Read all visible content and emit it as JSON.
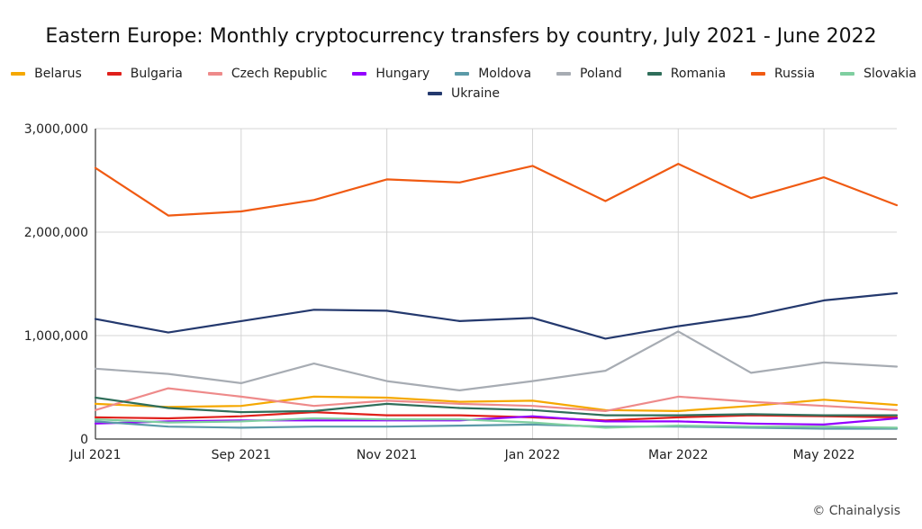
{
  "chart_data": {
    "type": "line",
    "title": "Eastern Europe: Monthly cryptocurrency transfers by country, July 2021 - June 2022",
    "xlabel": "",
    "ylabel": "",
    "x": [
      "Jul 2021",
      "Aug 2021",
      "Sep 2021",
      "Oct 2021",
      "Nov 2021",
      "Dec 2021",
      "Jan 2022",
      "Feb 2022",
      "Mar 2022",
      "Apr 2022",
      "May 2022",
      "Jun 2022"
    ],
    "xtick_labels": [
      "Jul 2021",
      "Sep 2021",
      "Nov 2021",
      "Jan 2022",
      "Mar 2022",
      "May 2022"
    ],
    "ytick_labels": [
      "0",
      "1,000,000",
      "2,000,000",
      "3,000,000"
    ],
    "ylim": [
      0,
      3000000
    ],
    "grid": true,
    "legend_position": "top",
    "series": [
      {
        "name": "Belarus",
        "color": "#f5a800",
        "values": [
          340000,
          310000,
          320000,
          410000,
          400000,
          360000,
          370000,
          280000,
          270000,
          320000,
          380000,
          330000
        ]
      },
      {
        "name": "Bulgaria",
        "color": "#e0201b",
        "values": [
          210000,
          200000,
          220000,
          260000,
          230000,
          230000,
          210000,
          180000,
          210000,
          230000,
          220000,
          210000
        ]
      },
      {
        "name": "Czech Republic",
        "color": "#ee8a8a",
        "values": [
          280000,
          490000,
          410000,
          320000,
          370000,
          340000,
          320000,
          270000,
          410000,
          360000,
          320000,
          280000
        ]
      },
      {
        "name": "Hungary",
        "color": "#9400ff",
        "values": [
          150000,
          170000,
          180000,
          180000,
          180000,
          180000,
          220000,
          170000,
          170000,
          150000,
          140000,
          200000
        ]
      },
      {
        "name": "Moldova",
        "color": "#5b9aa8",
        "values": [
          170000,
          120000,
          110000,
          120000,
          120000,
          130000,
          140000,
          120000,
          120000,
          110000,
          100000,
          100000
        ]
      },
      {
        "name": "Poland",
        "color": "#a7acb3",
        "values": [
          680000,
          630000,
          540000,
          730000,
          560000,
          470000,
          560000,
          660000,
          1040000,
          640000,
          740000,
          700000
        ]
      },
      {
        "name": "Romania",
        "color": "#2f6e5a",
        "values": [
          400000,
          300000,
          260000,
          270000,
          340000,
          300000,
          280000,
          230000,
          230000,
          240000,
          230000,
          230000
        ]
      },
      {
        "name": "Russia",
        "color": "#f05a12",
        "values": [
          2620000,
          2160000,
          2200000,
          2310000,
          2510000,
          2480000,
          2640000,
          2300000,
          2660000,
          2330000,
          2530000,
          2260000
        ]
      },
      {
        "name": "Slovakia",
        "color": "#7fcfa0",
        "values": [
          190000,
          160000,
          170000,
          200000,
          190000,
          190000,
          160000,
          110000,
          130000,
          120000,
          120000,
          110000
        ]
      },
      {
        "name": "Ukraine",
        "color": "#24396e",
        "values": [
          1160000,
          1030000,
          1140000,
          1250000,
          1240000,
          1140000,
          1170000,
          970000,
          1090000,
          1190000,
          1340000,
          1410000
        ]
      }
    ]
  },
  "legend": {
    "row1": [
      "Belarus",
      "Bulgaria",
      "Czech Republic",
      "Hungary",
      "Moldova",
      "Poland",
      "Romania",
      "Russia",
      "Slovakia"
    ],
    "row2": [
      "Ukraine"
    ]
  },
  "credit": "© Chainalysis"
}
